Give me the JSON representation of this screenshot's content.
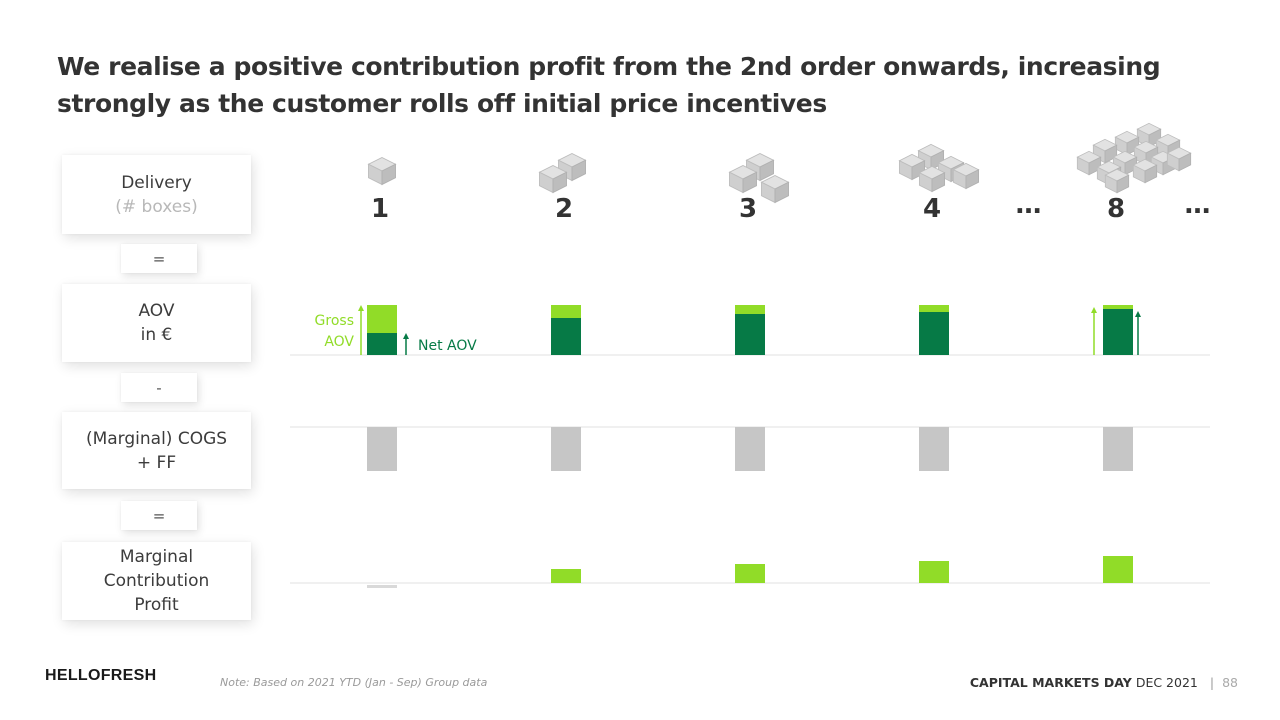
{
  "slide": {
    "title": "We realise a positive contribution profit from the 2nd order onwards, increasing strongly as the customer rolls off initial price incentives"
  },
  "row_labels": {
    "delivery": {
      "line1": "Delivery",
      "line2": "(# boxes)"
    },
    "aov": {
      "line1": "AOV",
      "line2": "in €"
    },
    "cogs": {
      "line1": "(Marginal) COGS",
      "line2": "+ FF"
    },
    "profit": {
      "line1": "Marginal",
      "line2": "Contribution",
      "line3": "Profit"
    }
  },
  "operators": {
    "op1": "=",
    "op2": "-",
    "op3": "="
  },
  "ellipsis": "…",
  "icons": {
    "box": "box-icon"
  },
  "footer": {
    "logo": "HELLOFRESH",
    "note": "Note:  Based on 2021 YTD (Jan - Sep) Group data",
    "event_bold": "CAPITAL MARKETS DAY",
    "event_rest": "DEC 2021",
    "separator": "|",
    "page": "88"
  },
  "colors": {
    "gross_aov": "#91dc28",
    "net_aov": "#067a46",
    "cogs": "#c6c6c6",
    "profit_positive": "#91dc28",
    "profit_negative": "#d9d9d9",
    "axis": "#e6e6e6",
    "box": "#d2d2d2"
  },
  "chart_data": {
    "type": "bar",
    "categories": [
      "1",
      "2",
      "3",
      "4",
      "8"
    ],
    "annotations": {
      "gross_aov": "Gross\nAOV",
      "net_aov": "Net AOV"
    },
    "series": [
      {
        "name": "Gross AOV",
        "values": [
          100,
          100,
          100,
          100,
          100
        ]
      },
      {
        "name": "Net AOV",
        "values": [
          44,
          74,
          82,
          86,
          92
        ]
      },
      {
        "name": "(Marginal) COGS + FF",
        "values": [
          -88,
          -88,
          -88,
          -88,
          -88
        ]
      },
      {
        "name": "Marginal Contribution Profit",
        "values": [
          -10,
          28,
          38,
          44,
          54
        ]
      }
    ]
  }
}
